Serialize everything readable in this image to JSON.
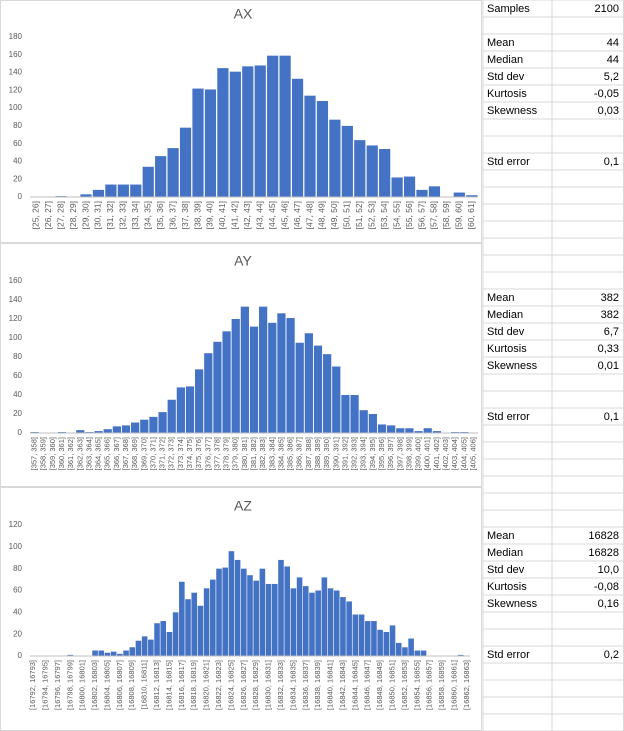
{
  "chart_data": [
    {
      "type": "bar",
      "title": "AX",
      "color": "#4472c4",
      "grid": false,
      "categories": [
        "[25, 26]",
        "[26, 27]",
        "[27, 28]",
        "[28, 29]",
        "[29, 30]",
        "[30, 31]",
        "[31, 32]",
        "[32, 33]",
        "[33, 34]",
        "[34, 35]",
        "[35, 36]",
        "[36, 37]",
        "[37, 38]",
        "[38, 39]",
        "[39, 40]",
        "[40, 41]",
        "[41, 42]",
        "[42, 43]",
        "[43, 44]",
        "[44, 45]",
        "[45, 46]",
        "[46, 47]",
        "[47, 48]",
        "[48, 49]",
        "[49, 50]",
        "[50, 51]",
        "[51, 52]",
        "[52, 53]",
        "[53, 54]",
        "[54, 55]",
        "[55, 56]",
        "[56, 57]",
        "[57, 58]",
        "[58, 59]",
        "[59, 60]",
        "[60, 61]"
      ],
      "values": [
        0,
        0,
        1,
        0,
        3,
        8,
        14,
        14,
        14,
        34,
        46,
        55,
        78,
        122,
        121,
        145,
        141,
        147,
        148,
        159,
        159,
        133,
        114,
        108,
        87,
        80,
        64,
        58,
        54,
        22,
        23,
        8,
        12,
        0,
        5,
        2
      ],
      "ylim": [
        0,
        180
      ],
      "yticks": [
        0,
        20,
        40,
        60,
        80,
        100,
        120,
        140,
        160,
        180
      ]
    },
    {
      "type": "bar",
      "title": "AY",
      "color": "#4472c4",
      "grid": false,
      "categories": [
        "[357, 358]",
        "[358, 359]",
        "[359, 360]",
        "[360, 361]",
        "[361, 362]",
        "[362, 363]",
        "[363, 364]",
        "[364, 365]",
        "[365, 366]",
        "[366, 367]",
        "[367, 368]",
        "[368, 369]",
        "[369, 370]",
        "[370, 371]",
        "[371, 372]",
        "[372, 373]",
        "[373, 374]",
        "[374, 375]",
        "[375, 376]",
        "[376, 377]",
        "[377, 378]",
        "[378, 379]",
        "[379, 380]",
        "[380, 381]",
        "[381, 382]",
        "[382, 383]",
        "[383, 384]",
        "[384, 385]",
        "[385, 386]",
        "[386, 387]",
        "[387, 388]",
        "[388, 389]",
        "[389, 390]",
        "[390, 391]",
        "[391, 392]",
        "[392, 393]",
        "[393, 394]",
        "[394, 395]",
        "[395, 396]",
        "[396, 397]",
        "[397, 398]",
        "[398, 399]",
        "[399, 400]",
        "[400, 401]",
        "[401, 402]",
        "[402, 403]",
        "[403, 404]",
        "[404, 405]",
        "[405, 406]"
      ],
      "values": [
        1,
        0,
        0,
        1,
        0,
        3,
        1,
        2,
        4,
        7,
        8,
        11,
        14,
        17,
        22,
        35,
        48,
        49,
        67,
        84,
        96,
        107,
        120,
        133,
        112,
        133,
        116,
        126,
        121,
        95,
        105,
        92,
        83,
        70,
        40,
        40,
        24,
        20,
        9,
        8,
        5,
        5,
        2,
        5,
        2,
        0,
        1,
        1,
        0
      ],
      "ylim": [
        0,
        160
      ],
      "yticks": [
        0,
        20,
        40,
        60,
        80,
        100,
        120,
        140,
        160
      ]
    },
    {
      "type": "bar",
      "title": "AZ",
      "color": "#4472c4",
      "grid": false,
      "categories": [
        "[16792, 16793]",
        null,
        "[16794, 16795]",
        null,
        "[16796, 16797]",
        null,
        "[16798, 16799]",
        null,
        "[16800, 16801]",
        null,
        "[16802, 16803]",
        null,
        "[16804, 16805]",
        null,
        "[16806, 16807]",
        null,
        "[16808, 16809]",
        null,
        "[16810, 16811]",
        null,
        "[16812, 16813]",
        null,
        "[16814, 16815]",
        null,
        "[16816, 16817]",
        null,
        "[16818, 16819]",
        null,
        "[16820, 16821]",
        null,
        "[16822, 16823]",
        null,
        "[16824, 16825]",
        null,
        "[16826, 16827]",
        null,
        "[16828, 16829]",
        null,
        "[16830, 16831]",
        null,
        "[16832, 16833]",
        null,
        "[16834, 16835]",
        null,
        "[16836, 16837]",
        null,
        "[16838, 16839]",
        null,
        "[16840, 16841]",
        null,
        "[16842, 16843]",
        null,
        "[16844, 16845]",
        null,
        "[16846, 16847]",
        null,
        "[16848, 16849]",
        null,
        "[16850, 16851]",
        null,
        "[16852, 16853]",
        null,
        "[16854, 16855]",
        null,
        "[16856, 16857]",
        null,
        "[16858, 16859]",
        null,
        "[16860, 16861]",
        null,
        "[16862, 16863]"
      ],
      "values": [
        0,
        0,
        0,
        0,
        0,
        0,
        1,
        0,
        0,
        0,
        5,
        5,
        3,
        4,
        2,
        5,
        8,
        14,
        18,
        15,
        30,
        32,
        22,
        40,
        68,
        52,
        58,
        46,
        62,
        70,
        80,
        81,
        96,
        88,
        80,
        74,
        69,
        80,
        66,
        66,
        88,
        82,
        62,
        72,
        64,
        58,
        60,
        72,
        62,
        60,
        54,
        50,
        38,
        38,
        32,
        32,
        24,
        22,
        28,
        12,
        8,
        16,
        5,
        5,
        0,
        0,
        0,
        0,
        0,
        1,
        0
      ],
      "ylim": [
        0,
        120
      ],
      "yticks": [
        0,
        20,
        40,
        60,
        80,
        100,
        120
      ]
    }
  ],
  "sheet": {
    "samples": {
      "label": "Samples",
      "value": "2100"
    },
    "blocks": [
      {
        "rows": [
          {
            "label": "Mean",
            "value": "44"
          },
          {
            "label": "Median",
            "value": "44"
          },
          {
            "label": "Std dev",
            "value": "5,2"
          },
          {
            "label": "Kurtosis",
            "value": "-0,05"
          },
          {
            "label": "Skewness",
            "value": "0,03"
          }
        ],
        "std_error": {
          "label": "Std error",
          "value": "0,1"
        }
      },
      {
        "rows": [
          {
            "label": "Mean",
            "value": "382"
          },
          {
            "label": "Median",
            "value": "382"
          },
          {
            "label": "Std dev",
            "value": "6,7"
          },
          {
            "label": "Kurtosis",
            "value": "0,33"
          },
          {
            "label": "Skewness",
            "value": "0,01"
          }
        ],
        "std_error": {
          "label": "Std error",
          "value": "0,1"
        }
      },
      {
        "rows": [
          {
            "label": "Mean",
            "value": "16828"
          },
          {
            "label": "Median",
            "value": "16828"
          },
          {
            "label": "Std dev",
            "value": "10,0"
          },
          {
            "label": "Kurtosis",
            "value": "-0,08"
          },
          {
            "label": "Skewness",
            "value": "0,16"
          }
        ],
        "std_error": {
          "label": "Std error",
          "value": "0,2"
        }
      }
    ]
  }
}
